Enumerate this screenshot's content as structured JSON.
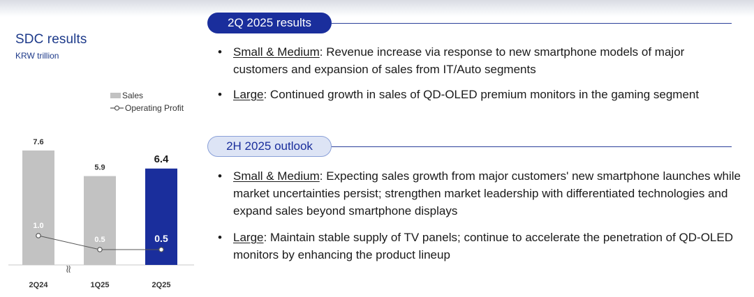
{
  "chart_data": {
    "type": "bar",
    "title": "SDC results",
    "unit": "KRW trillion",
    "categories": [
      "2Q24",
      "1Q25",
      "2Q25"
    ],
    "series": [
      {
        "name": "Sales",
        "type": "bar",
        "values": [
          7.6,
          5.9,
          6.4
        ],
        "colors": [
          "#c2c2c2",
          "#c2c2c2",
          "#1a2e9c"
        ]
      },
      {
        "name": "Operating Profit",
        "type": "line",
        "values": [
          1.0,
          0.5,
          0.5
        ],
        "color": "#555555"
      }
    ],
    "axis_break_between": [
      "2Q24",
      "1Q25"
    ],
    "axis_break_symbol": "≈",
    "legend_position": "top-right",
    "grid": false,
    "highlight_category": "2Q25"
  },
  "legend": {
    "sales": "Sales",
    "operating_profit": "Operating Profit"
  },
  "results": {
    "heading": "2Q 2025 results",
    "bullets": [
      {
        "term": "Small & Medium",
        "text": ": Revenue increase via response to new smartphone models of major customers and expansion of sales from IT/Auto segments"
      },
      {
        "term": "Large",
        "text": ": Continued growth in sales of QD-OLED premium monitors in the gaming segment"
      }
    ]
  },
  "outlook": {
    "heading": "2H 2025 outlook",
    "bullets": [
      {
        "term": "Small & Medium",
        "text": ": Expecting sales growth from major customers' new smartphone launches while market uncertainties persist; strengthen market leadership with differentiated technologies and expand sales beyond smartphone displays"
      },
      {
        "term": "Large",
        "text": ": Maintain stable supply of TV panels; continue to accelerate the penetration of QD-OLED monitors by enhancing the product lineup"
      }
    ]
  },
  "colors": {
    "accent_navy": "#1a2e9c",
    "bar_gray": "#c2c2c2",
    "pill_light": "#dde4f5"
  }
}
